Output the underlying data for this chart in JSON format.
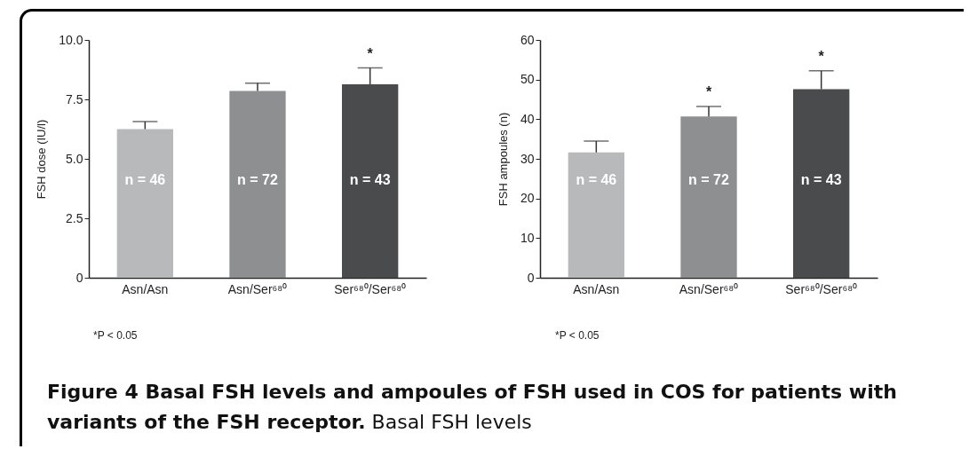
{
  "chart_data": [
    {
      "type": "bar",
      "ylabel": "FSH dose (IU/l)",
      "categories": [
        "Asn/Asn",
        "Asn/Ser⁶⁸⁰",
        "Ser⁶⁸⁰/Ser⁶⁸⁰"
      ],
      "values": [
        6.25,
        7.85,
        8.13
      ],
      "colors": [
        "#b8b9bb",
        "#8e8f91",
        "#4a4b4d"
      ],
      "errors": [
        [
          6.25,
          6.57
        ],
        [
          7.85,
          8.18
        ],
        [
          8.13,
          8.82
        ]
      ],
      "ylim": [
        0,
        10
      ],
      "yticks": [
        0,
        2.5,
        {
          "value": 5,
          "label": "5.0"
        },
        7.5,
        {
          "value": 10,
          "label": "10.0"
        }
      ],
      "grid": false,
      "annotations": [
        "*P < 0.05",
        "n = 46",
        "n = 72",
        "n = 43",
        {
          "text": "*",
          "x": "Ser⁶⁸⁰/Ser⁶⁸⁰",
          "y": 8.82
        },
        "Figure 4 Basal FSH levels and ampoules of FSH used in COS for patients with variants of the FSH receptor.",
        "Basal FSH levels"
      ]
    },
    {
      "type": "bar",
      "ylabel": "FSH ampoules (n)",
      "categories": [
        "Asn/Asn",
        "Asn/Ser⁶⁸⁰",
        "Ser⁶⁸⁰/Ser⁶⁸⁰"
      ],
      "values": [
        31.6,
        40.7,
        47.6
      ],
      "colors": [
        "#b8b9bb",
        "#8e8f91",
        "#4a4b4d"
      ],
      "errors": [
        [
          31.6,
          34.5
        ],
        [
          40.7,
          43.2
        ],
        [
          47.6,
          52.2
        ]
      ],
      "ylim": [
        0,
        60
      ],
      "yticks": [
        0,
        10,
        20,
        30,
        40,
        50,
        60
      ],
      "grid": false,
      "annotations": [
        "*P < 0.05",
        "n = 46",
        "n = 72",
        "n = 43",
        {
          "text": "*",
          "x": "Asn/Ser⁶⁸⁰",
          "y": 43.2
        },
        {
          "text": "*",
          "x": "Ser⁶⁸⁰/Ser⁶⁸⁰",
          "y": 52.2
        }
      ]
    }
  ]
}
